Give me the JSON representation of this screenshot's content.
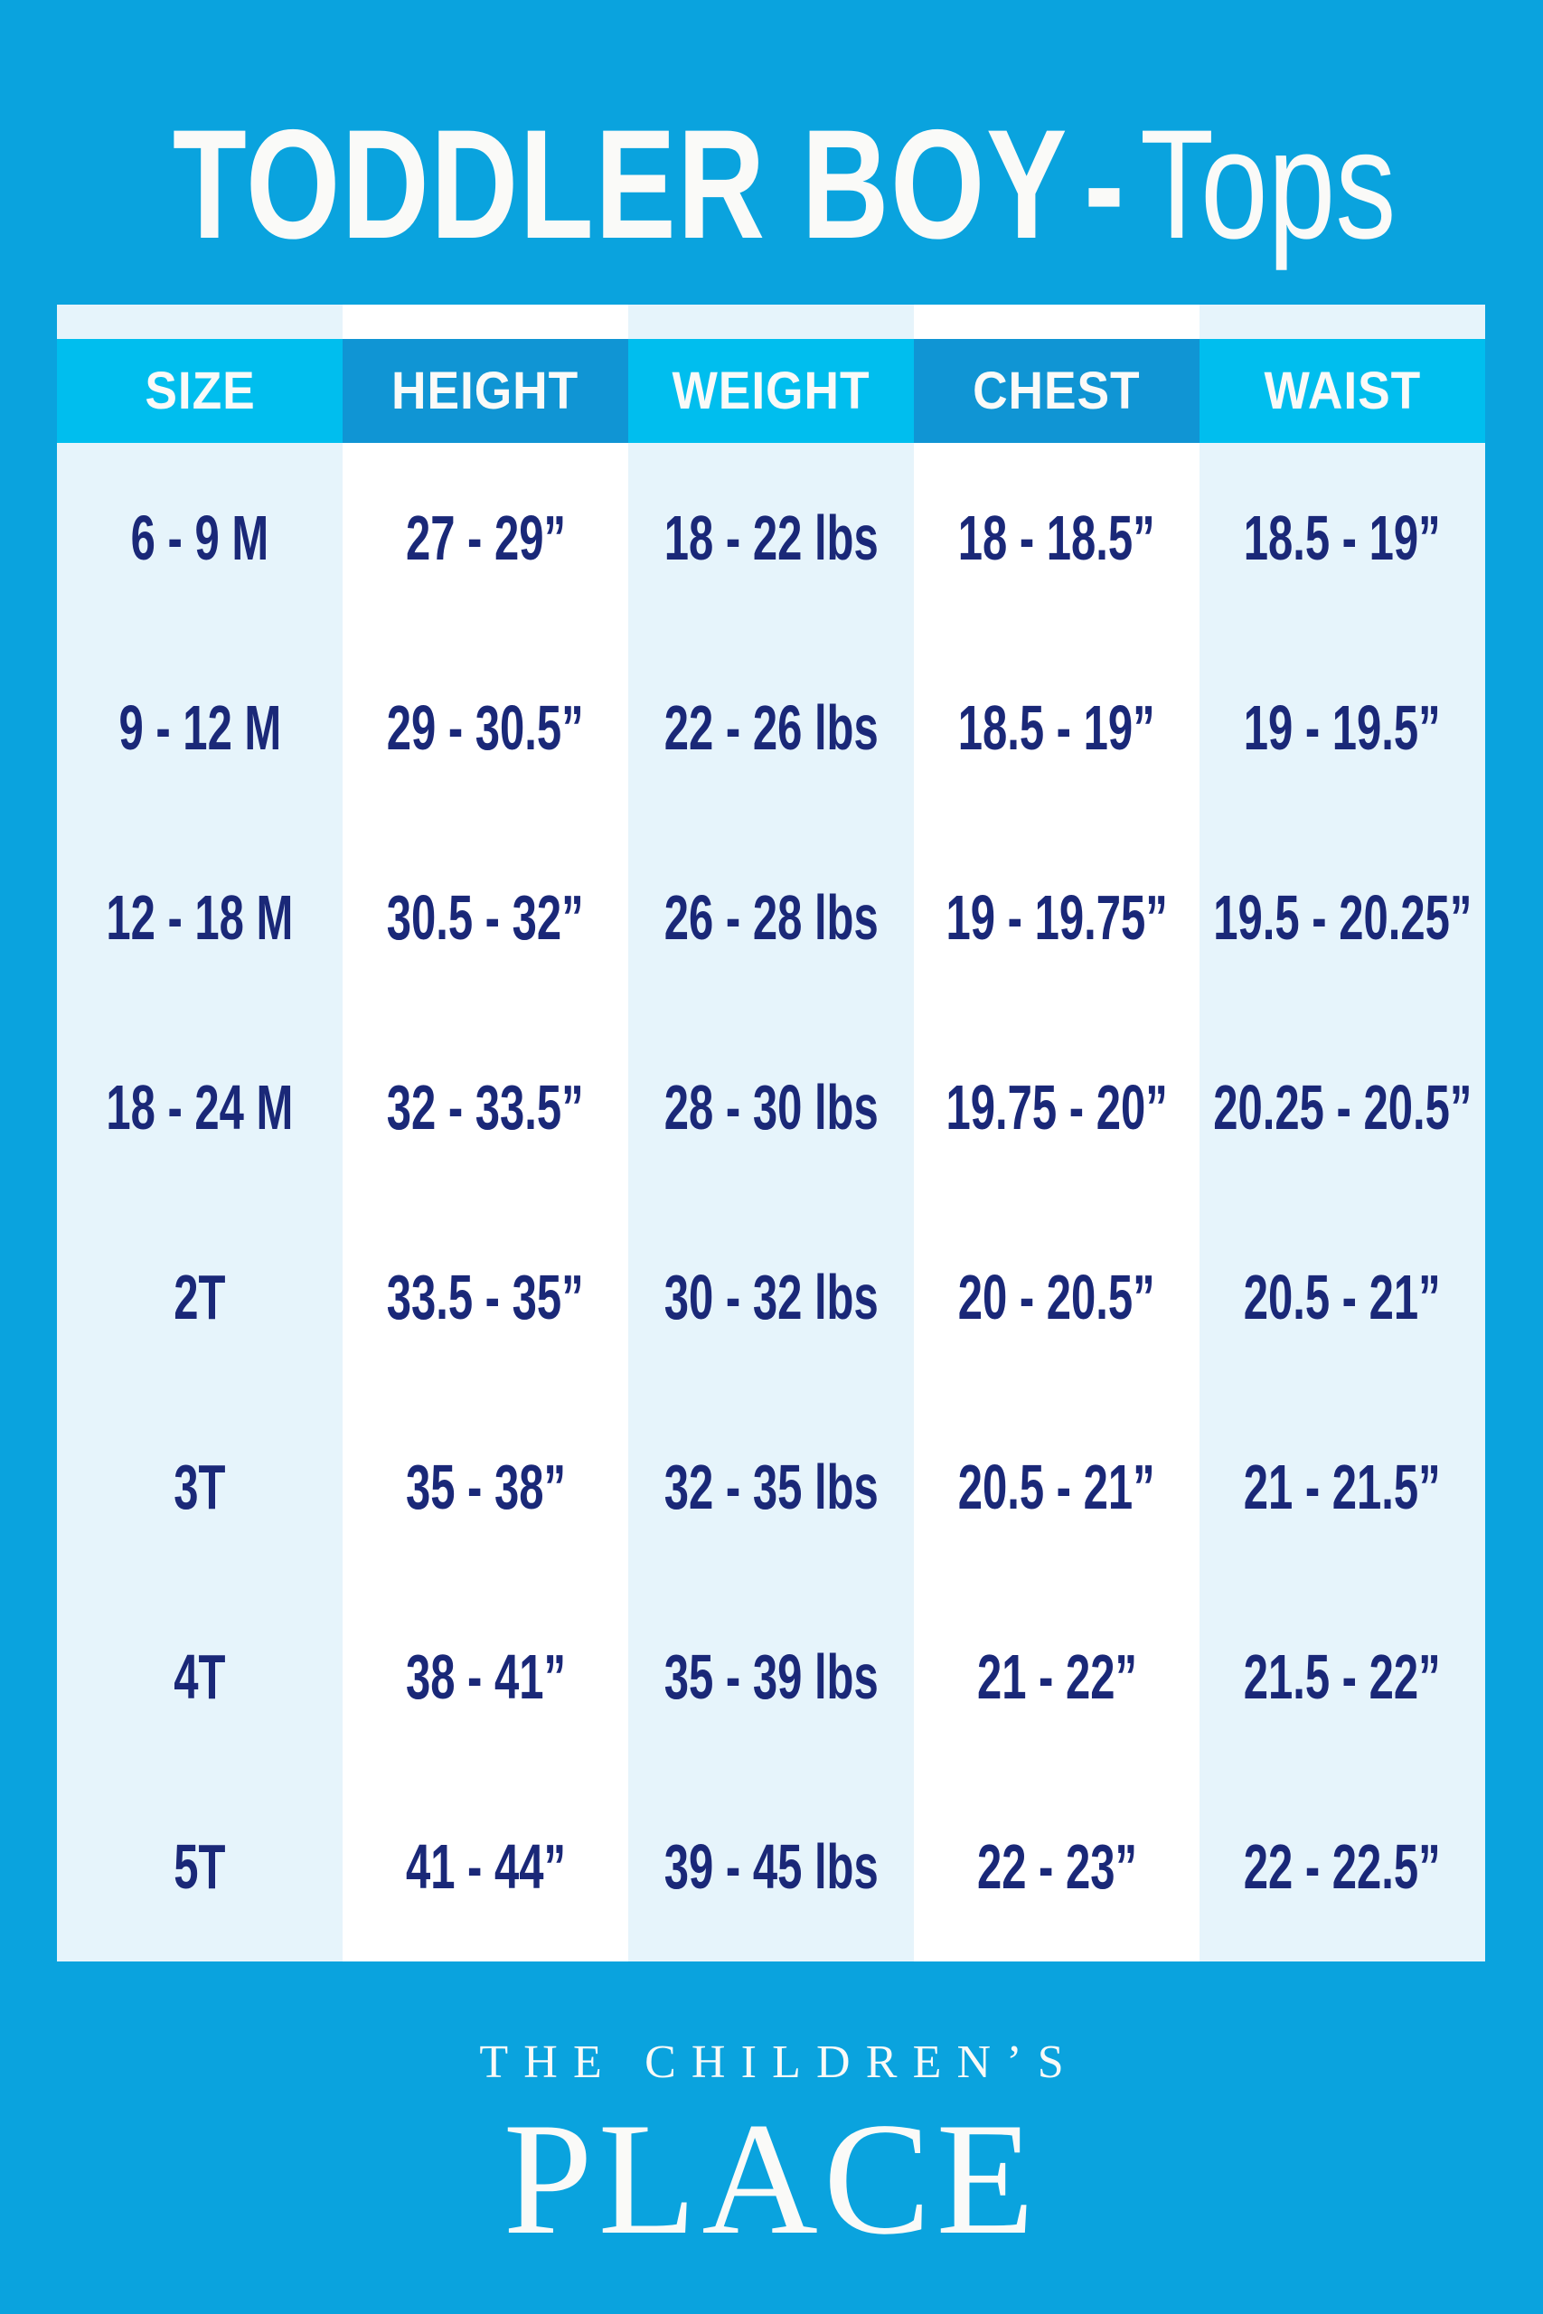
{
  "title": {
    "bold": "TODDLER BOY",
    "dash": "-",
    "light": "Tops",
    "full": "TODDLER BOY - Tops"
  },
  "chart_data": {
    "type": "table",
    "title": "TODDLER BOY - Tops",
    "columns": [
      "SIZE",
      "HEIGHT",
      "WEIGHT",
      "CHEST",
      "WAIST"
    ],
    "rows": [
      [
        "6 - 9 M",
        "27 - 29”",
        "18 - 22 lbs",
        "18 - 18.5”",
        "18.5 - 19”"
      ],
      [
        "9 - 12 M",
        "29 - 30.5”",
        "22 - 26 lbs",
        "18.5 - 19”",
        "19 - 19.5”"
      ],
      [
        "12 - 18 M",
        "30.5 - 32”",
        "26 - 28 lbs",
        "19 - 19.75”",
        "19.5 - 20.25”"
      ],
      [
        "18 - 24 M",
        "32 - 33.5”",
        "28 - 30 lbs",
        "19.75 - 20”",
        "20.25 - 20.5”"
      ],
      [
        "2T",
        "33.5 - 35”",
        "30 - 32 lbs",
        "20 - 20.5”",
        "20.5 - 21”"
      ],
      [
        "3T",
        "35 - 38”",
        "32 - 35 lbs",
        "20.5 - 21”",
        "21 - 21.5”"
      ],
      [
        "4T",
        "38 - 41”",
        "35 - 39 lbs",
        "21 - 22”",
        "21.5 - 22”"
      ],
      [
        "5T",
        "41 - 44”",
        "39 - 45 lbs",
        "22 - 23”",
        "22 - 22.5”"
      ]
    ]
  },
  "footer": {
    "line1": "THE CHILDREN’S",
    "line2": "PLACE"
  },
  "colors": {
    "bg": "#0aa3de",
    "header-light": "#00beee",
    "header-dark": "#1095d4",
    "col-light": "#e6f4fb",
    "col-white": "#ffffff",
    "navy": "#1a2878",
    "white-text": "#fafaf8"
  }
}
